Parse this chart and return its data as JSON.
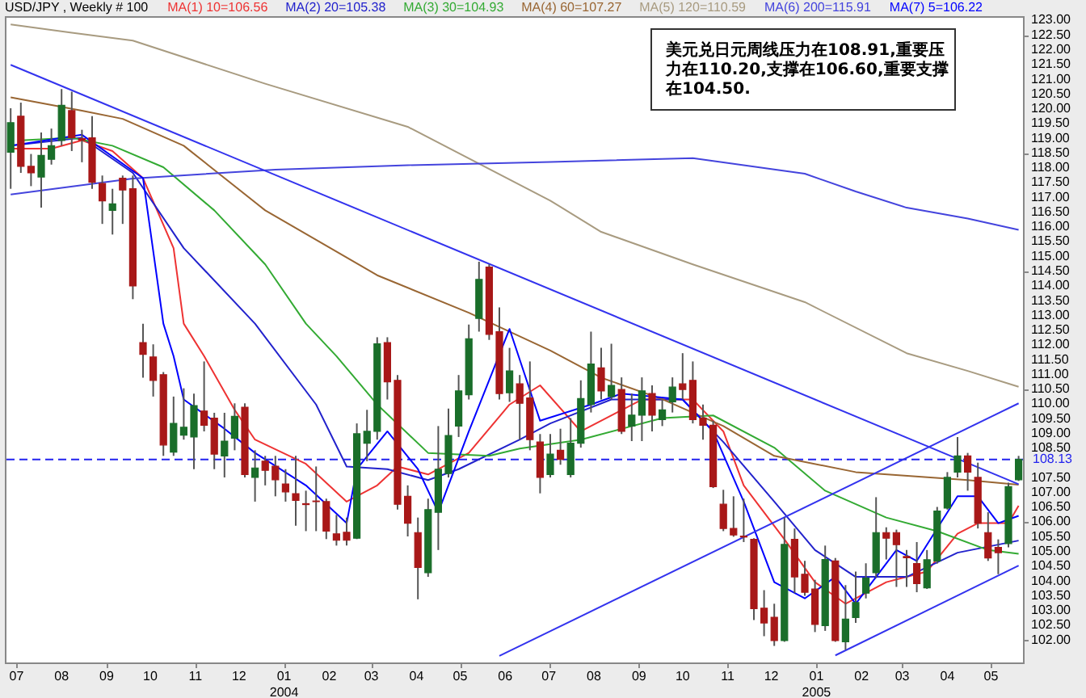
{
  "chart_data": {
    "type": "candlestick",
    "title": "USD/JPY , Weekly # 100",
    "legend": "top",
    "x": [
      "2003-06-27",
      "2003-07-04",
      "2003-07-11",
      "2003-07-18",
      "2003-07-25",
      "2003-08-01",
      "2003-08-08",
      "2003-08-15",
      "2003-08-22",
      "2003-08-29",
      "2003-09-05",
      "2003-09-12",
      "2003-09-19",
      "2003-09-26",
      "2003-10-03",
      "2003-10-10",
      "2003-10-17",
      "2003-10-24",
      "2003-10-31",
      "2003-11-07",
      "2003-11-14",
      "2003-11-21",
      "2003-11-28",
      "2003-12-05",
      "2003-12-12",
      "2003-12-19",
      "2003-12-26",
      "2004-01-02",
      "2004-01-09",
      "2004-01-16",
      "2004-01-23",
      "2004-01-30",
      "2004-02-06",
      "2004-02-13",
      "2004-02-20",
      "2004-02-27",
      "2004-03-05",
      "2004-03-12",
      "2004-03-19",
      "2004-03-26",
      "2004-04-02",
      "2004-04-09",
      "2004-04-16",
      "2004-04-23",
      "2004-04-30",
      "2004-05-07",
      "2004-05-14",
      "2004-05-21",
      "2004-05-28",
      "2004-06-04",
      "2004-06-11",
      "2004-06-18",
      "2004-06-25",
      "2004-07-02",
      "2004-07-09",
      "2004-07-16",
      "2004-07-23",
      "2004-07-30",
      "2004-08-06",
      "2004-08-13",
      "2004-08-20",
      "2004-08-27",
      "2004-09-03",
      "2004-09-10",
      "2004-09-17",
      "2004-09-24",
      "2004-10-01",
      "2004-10-08",
      "2004-10-15",
      "2004-10-22",
      "2004-10-29",
      "2004-11-05",
      "2004-11-12",
      "2004-11-19",
      "2004-11-26",
      "2004-12-03",
      "2004-12-10",
      "2004-12-17",
      "2004-12-24",
      "2004-12-31",
      "2005-01-07",
      "2005-01-14",
      "2005-01-21",
      "2005-01-28",
      "2005-02-04",
      "2005-02-11",
      "2005-02-18",
      "2005-02-25",
      "2005-03-04",
      "2005-03-11",
      "2005-03-18",
      "2005-03-25",
      "2005-04-01",
      "2005-04-08",
      "2005-04-15",
      "2005-04-22",
      "2005-04-29",
      "2005-05-06",
      "2005-05-13",
      "2005-05-20"
    ],
    "ohlc": [
      [
        118.54,
        120.03,
        117.3,
        119.54
      ],
      [
        119.76,
        120.22,
        117.84,
        118.06
      ],
      [
        118.06,
        118.48,
        117.39,
        117.84
      ],
      [
        117.7,
        119.21,
        116.66,
        118.43
      ],
      [
        118.3,
        119.34,
        118.12,
        118.76
      ],
      [
        118.94,
        120.68,
        118.76,
        120.13
      ],
      [
        119.95,
        120.59,
        118.58,
        119.03
      ],
      [
        119.0,
        119.3,
        118.2,
        118.95
      ],
      [
        119.03,
        119.76,
        117.3,
        117.52
      ],
      [
        117.48,
        117.75,
        116.11,
        116.89
      ],
      [
        116.57,
        117.3,
        115.75,
        116.79
      ],
      [
        117.66,
        117.75,
        116.11,
        117.26
      ],
      [
        117.3,
        117.75,
        113.56,
        114.01
      ],
      [
        112.09,
        112.73,
        110.9,
        111.69
      ],
      [
        111.6,
        112.03,
        110.26,
        110.81
      ],
      [
        111.0,
        111.09,
        108.25,
        108.62
      ],
      [
        108.38,
        110.26,
        108.25,
        109.35
      ],
      [
        108.95,
        110.54,
        108.8,
        109.22
      ],
      [
        108.89,
        110.36,
        107.8,
        109.95
      ],
      [
        109.77,
        111.45,
        109.08,
        109.29
      ],
      [
        109.53,
        109.71,
        107.8,
        108.31
      ],
      [
        108.25,
        109.71,
        107.52,
        108.75
      ],
      [
        108.85,
        110.03,
        108.44,
        109.59
      ],
      [
        109.9,
        110.03,
        107.52,
        107.62
      ],
      [
        107.52,
        108.44,
        106.7,
        107.84
      ],
      [
        108.07,
        108.25,
        107.25,
        107.76
      ],
      [
        107.9,
        108.25,
        106.88,
        107.44
      ],
      [
        107.3,
        107.8,
        106.7,
        107.03
      ],
      [
        106.97,
        108.25,
        105.88,
        106.74
      ],
      [
        106.63,
        107.07,
        105.7,
        106.6
      ],
      [
        106.72,
        107.89,
        105.7,
        106.7
      ],
      [
        106.7,
        106.8,
        105.43,
        105.7
      ],
      [
        105.61,
        106.25,
        105.21,
        105.39
      ],
      [
        105.66,
        106.16,
        105.21,
        105.39
      ],
      [
        105.46,
        109.35,
        105.43,
        109.0
      ],
      [
        108.68,
        109.81,
        108.07,
        109.08
      ],
      [
        109.08,
        112.27,
        108.8,
        112.05
      ],
      [
        112.09,
        112.27,
        110.16,
        110.76
      ],
      [
        110.81,
        110.99,
        106.43,
        106.61
      ],
      [
        106.88,
        107.25,
        105.52,
        105.97
      ],
      [
        105.65,
        106.16,
        103.39,
        104.47
      ],
      [
        104.29,
        106.8,
        104.15,
        106.43
      ],
      [
        106.34,
        109.26,
        105.06,
        107.8
      ],
      [
        107.65,
        109.85,
        107.52,
        108.94
      ],
      [
        109.26,
        110.99,
        108.89,
        110.45
      ],
      [
        110.32,
        112.7,
        110.16,
        112.22
      ],
      [
        112.91,
        114.83,
        112.46,
        114.23
      ],
      [
        114.65,
        114.74,
        112.18,
        112.37
      ],
      [
        112.46,
        113.28,
        110.16,
        110.36
      ],
      [
        110.39,
        111.91,
        110.08,
        111.13
      ],
      [
        110.69,
        110.99,
        108.8,
        110.03
      ],
      [
        110.21,
        111.45,
        108.44,
        108.8
      ],
      [
        108.72,
        108.99,
        106.98,
        107.52
      ],
      [
        107.62,
        108.99,
        107.52,
        108.31
      ],
      [
        108.44,
        109.17,
        107.95,
        108.13
      ],
      [
        107.62,
        109.53,
        107.52,
        108.68
      ],
      [
        108.68,
        110.81,
        108.53,
        110.19
      ],
      [
        109.99,
        112.46,
        109.72,
        111.36
      ],
      [
        111.23,
        111.91,
        110.16,
        110.45
      ],
      [
        110.26,
        112.05,
        110.16,
        110.64
      ],
      [
        110.5,
        110.91,
        108.99,
        109.08
      ],
      [
        109.26,
        110.36,
        108.75,
        109.63
      ],
      [
        109.63,
        110.91,
        108.75,
        110.45
      ],
      [
        110.36,
        110.64,
        109.08,
        109.63
      ],
      [
        109.48,
        110.16,
        109.26,
        109.81
      ],
      [
        110.08,
        110.91,
        109.72,
        110.58
      ],
      [
        110.69,
        111.73,
        110.16,
        110.5
      ],
      [
        110.81,
        111.45,
        109.35,
        109.48
      ],
      [
        109.53,
        109.99,
        108.8,
        109.29
      ],
      [
        109.29,
        109.44,
        107.16,
        107.21
      ],
      [
        106.61,
        107.1,
        105.7,
        105.79
      ],
      [
        105.79,
        106.88,
        105.51,
        105.57
      ],
      [
        105.53,
        106.8,
        105.33,
        105.5
      ],
      [
        105.42,
        105.46,
        102.69,
        103.07
      ],
      [
        103.09,
        103.7,
        102.14,
        102.59
      ],
      [
        102.78,
        103.24,
        101.81,
        101.99
      ],
      [
        101.99,
        106.16,
        101.95,
        105.25
      ],
      [
        105.42,
        105.79,
        103.6,
        104.15
      ],
      [
        104.24,
        104.69,
        103.51,
        103.63
      ],
      [
        103.74,
        104.05,
        102.28,
        102.54
      ],
      [
        102.5,
        105.21,
        102.32,
        104.74
      ],
      [
        104.69,
        104.79,
        101.95,
        101.99
      ],
      [
        101.95,
        103.87,
        101.68,
        102.72
      ],
      [
        102.77,
        104.33,
        102.59,
        103.28
      ],
      [
        103.6,
        104.61,
        103.42,
        104.11
      ],
      [
        104.29,
        106.85,
        104.11,
        105.65
      ],
      [
        105.65,
        105.83,
        104.74,
        105.46
      ],
      [
        105.65,
        105.75,
        103.81,
        105.24
      ],
      [
        104.84,
        105.06,
        103.81,
        104.8
      ],
      [
        104.6,
        105.33,
        103.63,
        103.92
      ],
      [
        103.78,
        105.06,
        103.74,
        104.73
      ],
      [
        104.69,
        106.52,
        104.6,
        106.38
      ],
      [
        106.48,
        107.7,
        106.43,
        107.52
      ],
      [
        107.7,
        108.89,
        107.52,
        108.25
      ],
      [
        108.25,
        108.35,
        107.07,
        107.7
      ],
      [
        107.52,
        108.02,
        105.79,
        105.97
      ],
      [
        105.65,
        106.34,
        104.69,
        104.79
      ],
      [
        105.15,
        105.42,
        104.24,
        104.97
      ],
      [
        105.28,
        107.34,
        105.15,
        107.21
      ],
      [
        107.44,
        108.25,
        107.4,
        108.13
      ]
    ],
    "colors": [
      "#1a6e2a",
      "#a81818",
      "#a81818",
      "#1a6e2a",
      "#1a6e2a",
      "#1a6e2a",
      "#a81818",
      "#a81818",
      "#a81818",
      "#a81818",
      "#1a6e2a",
      "#a81818",
      "#a81818",
      "#a81818",
      "#a81818",
      "#a81818",
      "#1a6e2a",
      "#1a6e2a",
      "#1a6e2a",
      "#a81818",
      "#a81818",
      "#1a6e2a",
      "#1a6e2a",
      "#a81818",
      "#1a6e2a",
      "#a81818",
      "#a81818",
      "#a81818",
      "#a81818",
      "#a81818",
      "#a81818",
      "#a81818",
      "#a81818",
      "#a81818",
      "#1a6e2a",
      "#1a6e2a",
      "#1a6e2a",
      "#a81818",
      "#a81818",
      "#a81818",
      "#a81818",
      "#1a6e2a",
      "#1a6e2a",
      "#1a6e2a",
      "#1a6e2a",
      "#1a6e2a",
      "#1a6e2a",
      "#a81818",
      "#a81818",
      "#1a6e2a",
      "#a81818",
      "#a81818",
      "#a81818",
      "#1a6e2a",
      "#a81818",
      "#1a6e2a",
      "#1a6e2a",
      "#1a6e2a",
      "#a81818",
      "#1a6e2a",
      "#a81818",
      "#1a6e2a",
      "#1a6e2a",
      "#a81818",
      "#1a6e2a",
      "#1a6e2a",
      "#a81818",
      "#a81818",
      "#a81818",
      "#a81818",
      "#a81818",
      "#a81818",
      "#a81818",
      "#a81818",
      "#a81818",
      "#a81818",
      "#1a6e2a",
      "#a81818",
      "#a81818",
      "#a81818",
      "#1a6e2a",
      "#a81818",
      "#1a6e2a",
      "#1a6e2a",
      "#1a6e2a",
      "#1a6e2a",
      "#a81818",
      "#a81818",
      "#a81818",
      "#a81818",
      "#1a6e2a",
      "#1a6e2a",
      "#1a6e2a",
      "#1a6e2a",
      "#a81818",
      "#a81818",
      "#a81818",
      "#a81818",
      "#1a6e2a",
      "#1a6e2a"
    ],
    "series": [
      {
        "type": "line",
        "name": "MA(1) 10=106.56",
        "color": "#ee3333",
        "x": [
          "2003-06-27",
          "2003-07-25",
          "2003-08-15",
          "2003-09-05",
          "2003-09-26",
          "2003-10-17",
          "2003-10-24",
          "2003-11-07",
          "2003-11-28",
          "2003-12-12",
          "2004-01-16",
          "2004-02-13",
          "2004-03-05",
          "2004-03-19",
          "2004-04-09",
          "2004-05-07",
          "2004-06-04",
          "2004-06-25",
          "2004-07-23",
          "2004-09-03",
          "2004-10-08",
          "2004-10-29",
          "2004-11-12",
          "2004-12-10",
          "2004-12-31",
          "2005-01-21",
          "2005-02-18",
          "2005-03-04",
          "2005-03-18",
          "2005-04-08",
          "2005-04-22",
          "2005-05-13",
          "2005-05-20"
        ],
        "values": [
          118.66,
          118.66,
          118.94,
          118.58,
          117.66,
          115.29,
          112.73,
          111.63,
          109.81,
          108.8,
          107.98,
          106.7,
          107.25,
          107.89,
          107.62,
          108.35,
          109.99,
          110.64,
          109.08,
          110.16,
          110.16,
          109.08,
          107.25,
          105.42,
          103.97,
          103.24,
          103.97,
          104.15,
          104.33,
          105.61,
          105.97,
          105.97,
          106.56
        ]
      },
      {
        "type": "line",
        "name": "MA(2) 20=105.38",
        "color": "#2222cc",
        "x": [
          "2003-06-27",
          "2003-08-15",
          "2003-09-19",
          "2003-10-24",
          "2003-12-12",
          "2004-01-23",
          "2004-02-13",
          "2004-03-12",
          "2004-04-09",
          "2004-04-30",
          "2004-06-11",
          "2004-07-02",
          "2004-08-13",
          "2004-10-01",
          "2004-10-29",
          "2004-12-03",
          "2004-12-31",
          "2005-01-28",
          "2005-03-04",
          "2005-04-08",
          "2005-05-20"
        ],
        "values": [
          118.76,
          119.03,
          117.84,
          115.29,
          112.73,
          109.99,
          107.89,
          107.8,
          107.43,
          107.8,
          108.8,
          109.35,
          110.16,
          110.16,
          108.72,
          106.7,
          105.06,
          104.15,
          104.15,
          104.97,
          105.38
        ]
      },
      {
        "type": "line",
        "name": "MA(3) 30=104.93",
        "color": "#33aa33",
        "x": [
          "2003-07-04",
          "2003-08-08",
          "2003-09-05",
          "2003-10-10",
          "2003-11-14",
          "2003-12-19",
          "2004-01-16",
          "2004-02-06",
          "2004-03-05",
          "2004-04-09",
          "2004-05-21",
          "2004-06-11",
          "2004-07-23",
          "2004-09-17",
          "2004-10-22",
          "2004-12-03",
          "2005-01-07",
          "2005-02-18",
          "2005-03-25",
          "2005-04-29",
          "2005-05-20"
        ],
        "values": [
          118.94,
          119.03,
          118.76,
          118.03,
          116.57,
          114.74,
          112.73,
          111.63,
          109.99,
          108.35,
          108.25,
          108.5,
          108.8,
          109.53,
          109.62,
          108.53,
          107.07,
          106.16,
          105.7,
          105.06,
          104.93
        ]
      },
      {
        "type": "line",
        "name": "MA(4) 60=107.27",
        "color": "#996633",
        "x": [
          "2003-06-27",
          "2003-08-15",
          "2003-09-12",
          "2003-10-24",
          "2003-12-19",
          "2004-03-05",
          "2004-05-07",
          "2004-07-02",
          "2004-08-06",
          "2004-09-17",
          "2004-10-29",
          "2004-12-03",
          "2005-01-28",
          "2005-04-15",
          "2005-05-20"
        ],
        "values": [
          120.4,
          119.95,
          119.67,
          118.76,
          116.57,
          114.37,
          113.1,
          111.82,
          110.9,
          110.17,
          109.26,
          108.25,
          107.7,
          107.43,
          107.27
        ]
      },
      {
        "type": "line",
        "name": "MA(5) 120=110.59",
        "color": "#a89b80",
        "x": [
          "2003-06-27",
          "2003-08-08",
          "2003-09-19",
          "2003-12-19",
          "2004-03-26",
          "2004-07-02",
          "2004-08-06",
          "2004-10-08",
          "2004-12-24",
          "2005-03-04",
          "2005-04-15",
          "2005-05-20"
        ],
        "values": [
          122.87,
          122.59,
          122.32,
          120.86,
          119.4,
          116.9,
          115.84,
          114.74,
          113.46,
          111.73,
          111.13,
          110.59
        ]
      },
      {
        "type": "line",
        "name": "MA(6) 200=115.91",
        "color": "#4444dd",
        "x": [
          "2003-06-27",
          "2003-09-19",
          "2003-12-26",
          "2004-03-26",
          "2004-07-02",
          "2004-10-08",
          "2004-12-24",
          "2005-01-28",
          "2005-03-04",
          "2005-04-15",
          "2005-05-20"
        ],
        "values": [
          117.11,
          117.65,
          117.95,
          118.1,
          118.21,
          118.34,
          117.81,
          117.21,
          116.66,
          116.29,
          115.91
        ]
      },
      {
        "type": "line",
        "name": "MA(7) 5=106.22",
        "color": "#0000ff",
        "x": [
          "2003-06-27",
          "2003-08-15",
          "2003-09-26",
          "2003-10-10",
          "2003-10-17",
          "2003-10-24",
          "2003-11-21",
          "2003-12-12",
          "2004-01-16",
          "2004-02-13",
          "2004-02-20",
          "2004-03-12",
          "2004-04-02",
          "2004-04-16",
          "2004-05-07",
          "2004-06-04",
          "2004-06-25",
          "2004-07-30",
          "2004-08-20",
          "2004-10-01",
          "2004-10-22",
          "2004-11-12",
          "2004-12-03",
          "2004-12-24",
          "2005-01-14",
          "2005-01-28",
          "2005-02-25",
          "2005-03-11",
          "2005-04-08",
          "2005-04-22",
          "2005-05-06",
          "2005-05-20"
        ],
        "values": [
          118.76,
          119.13,
          117.66,
          112.73,
          111.63,
          110.16,
          109.17,
          108.35,
          107.25,
          105.97,
          107.8,
          109.08,
          107.8,
          106.34,
          109.08,
          112.55,
          109.44,
          109.99,
          110.36,
          110.16,
          109.08,
          106.7,
          103.97,
          103.42,
          104.15,
          103.24,
          105.06,
          104.69,
          106.88,
          106.88,
          105.97,
          106.22
        ]
      },
      {
        "type": "line",
        "color": "#3333ee",
        "x": [
          "2003-06-27",
          "2005-05-20"
        ],
        "values": [
          121.5,
          107.29
        ]
      },
      {
        "type": "line",
        "color": "#3333ee",
        "x": [
          "2004-05-28",
          "2005-05-20"
        ],
        "values": [
          101.47,
          110.03
        ]
      },
      {
        "type": "line",
        "color": "#3333ee",
        "x": [
          "2005-01-14",
          "2005-05-20"
        ],
        "values": [
          101.49,
          104.53
        ]
      }
    ],
    "xlim": [
      "2003-06-23",
      "2005-05-23"
    ],
    "xticks": [
      {
        "value": "2003-07-01",
        "label": "07"
      },
      {
        "value": "2003-08-01",
        "label": "08"
      },
      {
        "value": "2003-09-01",
        "label": "09"
      },
      {
        "value": "2003-10-01",
        "label": "10"
      },
      {
        "value": "2003-11-01",
        "label": "11"
      },
      {
        "value": "2003-12-01",
        "label": "12"
      },
      {
        "value": "2004-01-01",
        "label": "01\n2004"
      },
      {
        "value": "2004-02-01",
        "label": "02"
      },
      {
        "value": "2004-03-01",
        "label": "03"
      },
      {
        "value": "2004-04-01",
        "label": "04"
      },
      {
        "value": "2004-05-01",
        "label": "05"
      },
      {
        "value": "2004-06-01",
        "label": "06"
      },
      {
        "value": "2004-07-01",
        "label": "07"
      },
      {
        "value": "2004-08-01",
        "label": "08"
      },
      {
        "value": "2004-09-01",
        "label": "09"
      },
      {
        "value": "2004-10-01",
        "label": "10"
      },
      {
        "value": "2004-11-01",
        "label": "11"
      },
      {
        "value": "2004-12-01",
        "label": "12"
      },
      {
        "value": "2005-01-01",
        "label": "01\n2005"
      },
      {
        "value": "2005-02-01",
        "label": "02"
      },
      {
        "value": "2005-03-01",
        "label": "03"
      },
      {
        "value": "2005-04-01",
        "label": "04"
      },
      {
        "value": "2005-05-01",
        "label": "05"
      }
    ],
    "ylim": [
      101.25,
      123.15
    ],
    "yticks": [
      {
        "value": 102,
        "label": "102.00"
      },
      {
        "value": 102.5,
        "label": "102.50"
      },
      {
        "value": 103,
        "label": "103.00"
      },
      {
        "value": 103.5,
        "label": "103.50"
      },
      {
        "value": 104,
        "label": "104.00"
      },
      {
        "value": 104.5,
        "label": "104.50"
      },
      {
        "value": 105,
        "label": "105.00"
      },
      {
        "value": 105.5,
        "label": "105.50"
      },
      {
        "value": 106,
        "label": "106.00"
      },
      {
        "value": 106.5,
        "label": "106.50"
      },
      {
        "value": 107,
        "label": "107.00"
      },
      {
        "value": 107.5,
        "label": "107.50"
      },
      {
        "value": 108.5,
        "label": "108.50"
      },
      {
        "value": 109,
        "label": "109.00"
      },
      {
        "value": 109.5,
        "label": "109.50"
      },
      {
        "value": 110,
        "label": "110.00"
      },
      {
        "value": 110.5,
        "label": "110.50"
      },
      {
        "value": 111,
        "label": "111.00"
      },
      {
        "value": 111.5,
        "label": "111.50"
      },
      {
        "value": 112,
        "label": "112.00"
      },
      {
        "value": 112.5,
        "label": "112.50"
      },
      {
        "value": 113,
        "label": "113.00"
      },
      {
        "value": 113.5,
        "label": "113.50"
      },
      {
        "value": 114,
        "label": "114.00"
      },
      {
        "value": 114.5,
        "label": "114.50"
      },
      {
        "value": 115,
        "label": "115.00"
      },
      {
        "value": 115.5,
        "label": "115.50"
      },
      {
        "value": 116,
        "label": "116.00"
      },
      {
        "value": 116.5,
        "label": "116.50"
      },
      {
        "value": 117,
        "label": "117.00"
      },
      {
        "value": 117.5,
        "label": "117.50"
      },
      {
        "value": 118,
        "label": "118.00"
      },
      {
        "value": 118.5,
        "label": "118.50"
      },
      {
        "value": 119,
        "label": "119.00"
      },
      {
        "value": 119.5,
        "label": "119.50"
      },
      {
        "value": 120,
        "label": "120.00"
      },
      {
        "value": 120.5,
        "label": "120.50"
      },
      {
        "value": 121,
        "label": "121.00"
      },
      {
        "value": 121.5,
        "label": "121.50"
      },
      {
        "value": 122,
        "label": "122.00"
      },
      {
        "value": 122.5,
        "label": "122.50"
      },
      {
        "value": 123,
        "label": "123.00"
      }
    ],
    "ref_lines": [
      {
        "axis": "y",
        "value": 108.13,
        "label": "108.13",
        "color": "#2222ee",
        "line_style": "dashed"
      }
    ],
    "annotations": [
      "美元兑日元周线压力在108.91,重要压力在110.20,支撑在106.60,重要支撑在104.50."
    ]
  }
}
